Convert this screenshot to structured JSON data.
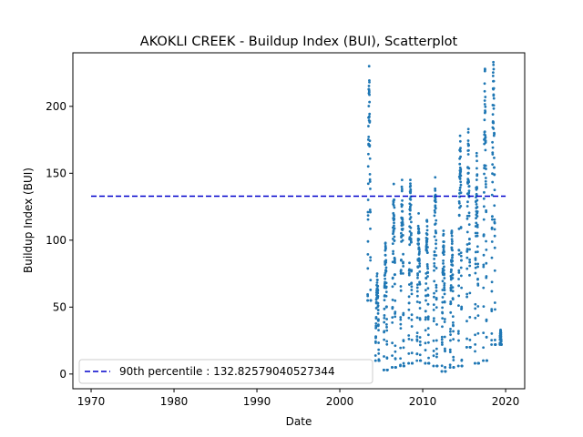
{
  "chart_data": {
    "type": "scatter",
    "title": "AKOKLI CREEK - Buildup Index (BUI), Scatterplot",
    "xlabel": "Date",
    "ylabel": "Buildup Index (BUI)",
    "xlim": [
      1967.8,
      2022.3
    ],
    "ylim": [
      -11,
      240
    ],
    "xticks": [
      1970,
      1980,
      1990,
      2000,
      2010,
      2020
    ],
    "yticks": [
      0,
      50,
      100,
      150,
      200
    ],
    "grid": false,
    "legend_position": "lower-left",
    "colors": {
      "points": "#1f77b4",
      "percentile_line": "#0000cc"
    },
    "percentile": {
      "label": "90th percentile : 132.82579040527344",
      "value": 132.82579040527344,
      "x_range": [
        1970,
        2020
      ]
    },
    "seasons": [
      {
        "year": 2003,
        "start": 2003.35,
        "end": 2003.75,
        "min": 55,
        "peak": 230
      },
      {
        "year": 2004,
        "start": 2004.3,
        "end": 2004.75,
        "min": 10,
        "peak": 75
      },
      {
        "year": 2005,
        "start": 2005.3,
        "end": 2005.75,
        "min": 3,
        "peak": 98
      },
      {
        "year": 2006,
        "start": 2006.3,
        "end": 2006.75,
        "min": 5,
        "peak": 142
      },
      {
        "year": 2007,
        "start": 2007.3,
        "end": 2007.75,
        "min": 6,
        "peak": 145
      },
      {
        "year": 2008,
        "start": 2008.3,
        "end": 2008.75,
        "min": 8,
        "peak": 145
      },
      {
        "year": 2009,
        "start": 2009.3,
        "end": 2009.75,
        "min": 10,
        "peak": 120
      },
      {
        "year": 2010,
        "start": 2010.3,
        "end": 2010.75,
        "min": 8,
        "peak": 115
      },
      {
        "year": 2011,
        "start": 2011.3,
        "end": 2011.75,
        "min": 6,
        "peak": 147
      },
      {
        "year": 2012,
        "start": 2012.3,
        "end": 2012.75,
        "min": 2,
        "peak": 107
      },
      {
        "year": 2013,
        "start": 2013.3,
        "end": 2013.75,
        "min": 5,
        "peak": 107
      },
      {
        "year": 2014,
        "start": 2014.3,
        "end": 2014.75,
        "min": 6,
        "peak": 178
      },
      {
        "year": 2015,
        "start": 2015.3,
        "end": 2015.75,
        "min": 20,
        "peak": 183
      },
      {
        "year": 2016,
        "start": 2016.3,
        "end": 2016.75,
        "min": 8,
        "peak": 165
      },
      {
        "year": 2017,
        "start": 2017.3,
        "end": 2017.75,
        "min": 10,
        "peak": 228
      },
      {
        "year": 2018,
        "start": 2018.3,
        "end": 2018.78,
        "min": 22,
        "peak": 233
      },
      {
        "year": 2019,
        "start": 2019.3,
        "end": 2019.5,
        "min": 22,
        "peak": 33
      }
    ]
  }
}
